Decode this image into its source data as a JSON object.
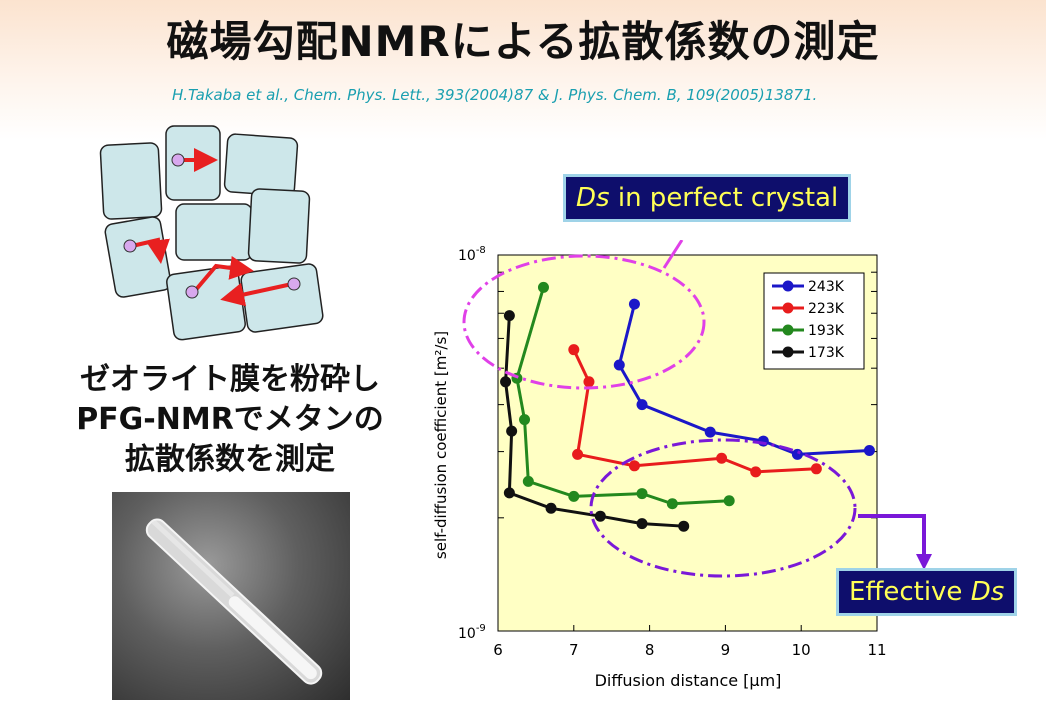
{
  "slide": {
    "title": "磁場勾配NMRによる拡散係数の測定",
    "citation": "H.Takaba et al., Chem. Phys. Lett., 393(2004)87 & J. Phys. Chem. B, 109(2005)13871.",
    "caption_lines": [
      "ゼオライト膜を粉砕し",
      "PFG-NMRでメタンの",
      "拡散係数を測定"
    ],
    "callout_perfect": {
      "italic": "Ds",
      "text": " in perfect crystal"
    },
    "callout_effective": {
      "text": "Effective ",
      "italic": "Ds"
    }
  },
  "colors": {
    "plot_bg": "#ffffc4",
    "s243": "#1b17c8",
    "s223": "#e81c1c",
    "s193": "#23881e",
    "s173": "#111111",
    "crystal_fill": "#cde7ea",
    "arrow_red": "#e82020",
    "ellipse_magenta": "#e040e8",
    "ellipse_purple": "#7a18d8",
    "callout_bg": "#0e0e6c",
    "callout_text": "#ffff55"
  },
  "chart_data": {
    "type": "line",
    "xlabel": "Diffusion distance [μm]",
    "ylabel": "self-diffusion coefficient [m²/s]",
    "xlim": [
      6,
      11
    ],
    "ylim": [
      1e-09,
      1e-08
    ],
    "yscale": "log",
    "x_ticks": [
      "6",
      "7",
      "8",
      "9",
      "10",
      "11"
    ],
    "y_tick_labels": [
      {
        "base": "10",
        "exp": "-8"
      },
      {
        "base": "10",
        "exp": "-9"
      }
    ],
    "legend_position": "top-right",
    "series": [
      {
        "name": "243K",
        "color": "#1b17c8",
        "points": [
          [
            7.8,
            7.4e-09
          ],
          [
            7.6,
            5.1e-09
          ],
          [
            7.9,
            4e-09
          ],
          [
            8.8,
            3.38e-09
          ],
          [
            9.5,
            3.2e-09
          ],
          [
            9.95,
            2.95e-09
          ],
          [
            10.9,
            3.02e-09
          ]
        ]
      },
      {
        "name": "223K",
        "color": "#e81c1c",
        "points": [
          [
            7.0,
            5.6e-09
          ],
          [
            7.2,
            4.6e-09
          ],
          [
            7.05,
            2.95e-09
          ],
          [
            7.8,
            2.75e-09
          ],
          [
            8.95,
            2.88e-09
          ],
          [
            9.4,
            2.65e-09
          ],
          [
            10.2,
            2.7e-09
          ]
        ]
      },
      {
        "name": "193K",
        "color": "#23881e",
        "points": [
          [
            6.6,
            8.2e-09
          ],
          [
            6.25,
            4.7e-09
          ],
          [
            6.35,
            3.65e-09
          ],
          [
            6.4,
            2.5e-09
          ],
          [
            7.0,
            2.28e-09
          ],
          [
            7.9,
            2.32e-09
          ],
          [
            8.3,
            2.18e-09
          ],
          [
            9.05,
            2.22e-09
          ]
        ]
      },
      {
        "name": "173K",
        "color": "#111111",
        "points": [
          [
            6.15,
            6.9e-09
          ],
          [
            6.1,
            4.6e-09
          ],
          [
            6.18,
            3.4e-09
          ],
          [
            6.15,
            2.33e-09
          ],
          [
            6.7,
            2.12e-09
          ],
          [
            7.35,
            2.02e-09
          ],
          [
            7.9,
            1.93e-09
          ],
          [
            8.45,
            1.9e-09
          ]
        ]
      }
    ]
  }
}
